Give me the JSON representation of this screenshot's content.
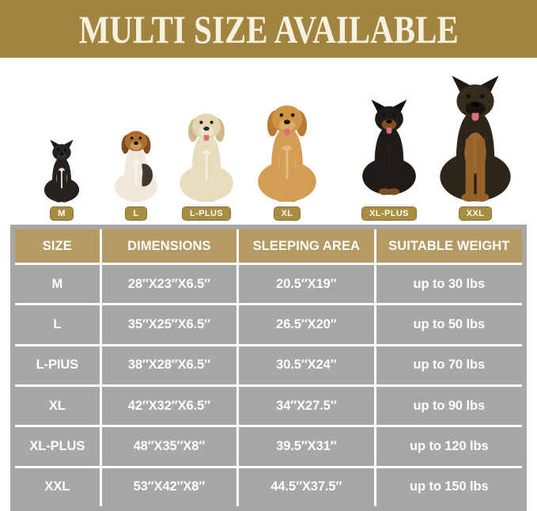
{
  "banner": {
    "title": "MULTI SIZE AVAILABLE"
  },
  "colors": {
    "banner_bg": "#a28441",
    "banner_text": "#f7f1e0",
    "table_header_bg": "#b59b63",
    "table_row_bg": "#a8a7a5",
    "table_divider": "#ffffff",
    "badge_bg": "#a78e42",
    "badge_border": "#8a7332",
    "cell_text": "#fdfdfd"
  },
  "dogs": [
    {
      "label": "M",
      "breed": "french-bulldog",
      "ears": "pointy",
      "tongue": false,
      "colors": {
        "body": "#262220",
        "head": "#262220",
        "ear": "#1c1917",
        "chest": "#e6e0d2",
        "legs": "#262220",
        "muzzle": "#332e2a",
        "nose": "#0a0908",
        "eyes": "#0c0a09"
      }
    },
    {
      "label": "L",
      "breed": "beagle",
      "ears": "floppy",
      "tongue": false,
      "colors": {
        "body": "#f0e9db",
        "head": "#ab6c31",
        "ear": "#7d4a1f",
        "chest": "#f8f4ea",
        "legs": "#f0e9db",
        "muzzle": "#c89a63",
        "patch": "#42382f",
        "nose": "#191410"
      }
    },
    {
      "label": "L-PLUS",
      "breed": "cream-golden-retriever",
      "ears": "floppy",
      "tongue": true,
      "colors": {
        "body": "#e8dcbf",
        "head": "#e4d5b2",
        "ear": "#cfb98c",
        "chest": "#f3ecda",
        "legs": "#e8dcbf",
        "muzzle": "#eee3cb",
        "nose": "#2a241d"
      }
    },
    {
      "label": "XL",
      "breed": "golden-retriever",
      "ears": "floppy",
      "tongue": true,
      "colors": {
        "body": "#d39d54",
        "head": "#cf9445",
        "ear": "#b67c33",
        "chest": "#e2b87e",
        "legs": "#d39d54",
        "muzzle": "#dbac67",
        "nose": "#23180e"
      }
    },
    {
      "label": "XL-PLUS",
      "breed": "doberman",
      "ears": "pointy",
      "tongue": true,
      "colors": {
        "body": "#1f1b16",
        "head": "#1f1b16",
        "ear": "#14110d",
        "chest": "#241f19",
        "legs": "#1f1b16",
        "paws": "#7e4e24",
        "muzzle": "#7e4e24",
        "nose": "#0c0a08"
      }
    },
    {
      "label": "XXL",
      "breed": "german-shepherd",
      "ears": "pointy",
      "tongue": true,
      "colors": {
        "body": "#2d251a",
        "head": "#362c1e",
        "ear": "#201a11",
        "chest": "#9d6b32",
        "legs": "#96622a",
        "muzzle": "#17130d",
        "nose": "#0b0908"
      }
    }
  ],
  "chart_data": {
    "type": "table",
    "title": "MULTI SIZE AVAILABLE",
    "columns": [
      "SIZE",
      "DIMENSIONS",
      "SLEEPING AREA",
      "SUITABLE WEIGHT"
    ],
    "rows": [
      [
        "M",
        "28″X23″X6.5″",
        "20.5″X19″",
        "up to 30 lbs"
      ],
      [
        "L",
        "35″X25″X6.5″",
        "26.5″X20″",
        "up to 50 lbs"
      ],
      [
        "L-PIUS",
        "38″X28″X6.5″",
        "30.5″X24″",
        "up to 70 lbs"
      ],
      [
        "XL",
        "42″X32″X6.5″",
        "34″X27.5″",
        "up to 90 lbs"
      ],
      [
        "XL-PLUS",
        "48″X35″X8″",
        "39.5″X31″",
        "up to 120 lbs"
      ],
      [
        "XXL",
        "53″X42″X8″",
        "44.5″X37.5″",
        "up to 150 lbs"
      ]
    ]
  }
}
